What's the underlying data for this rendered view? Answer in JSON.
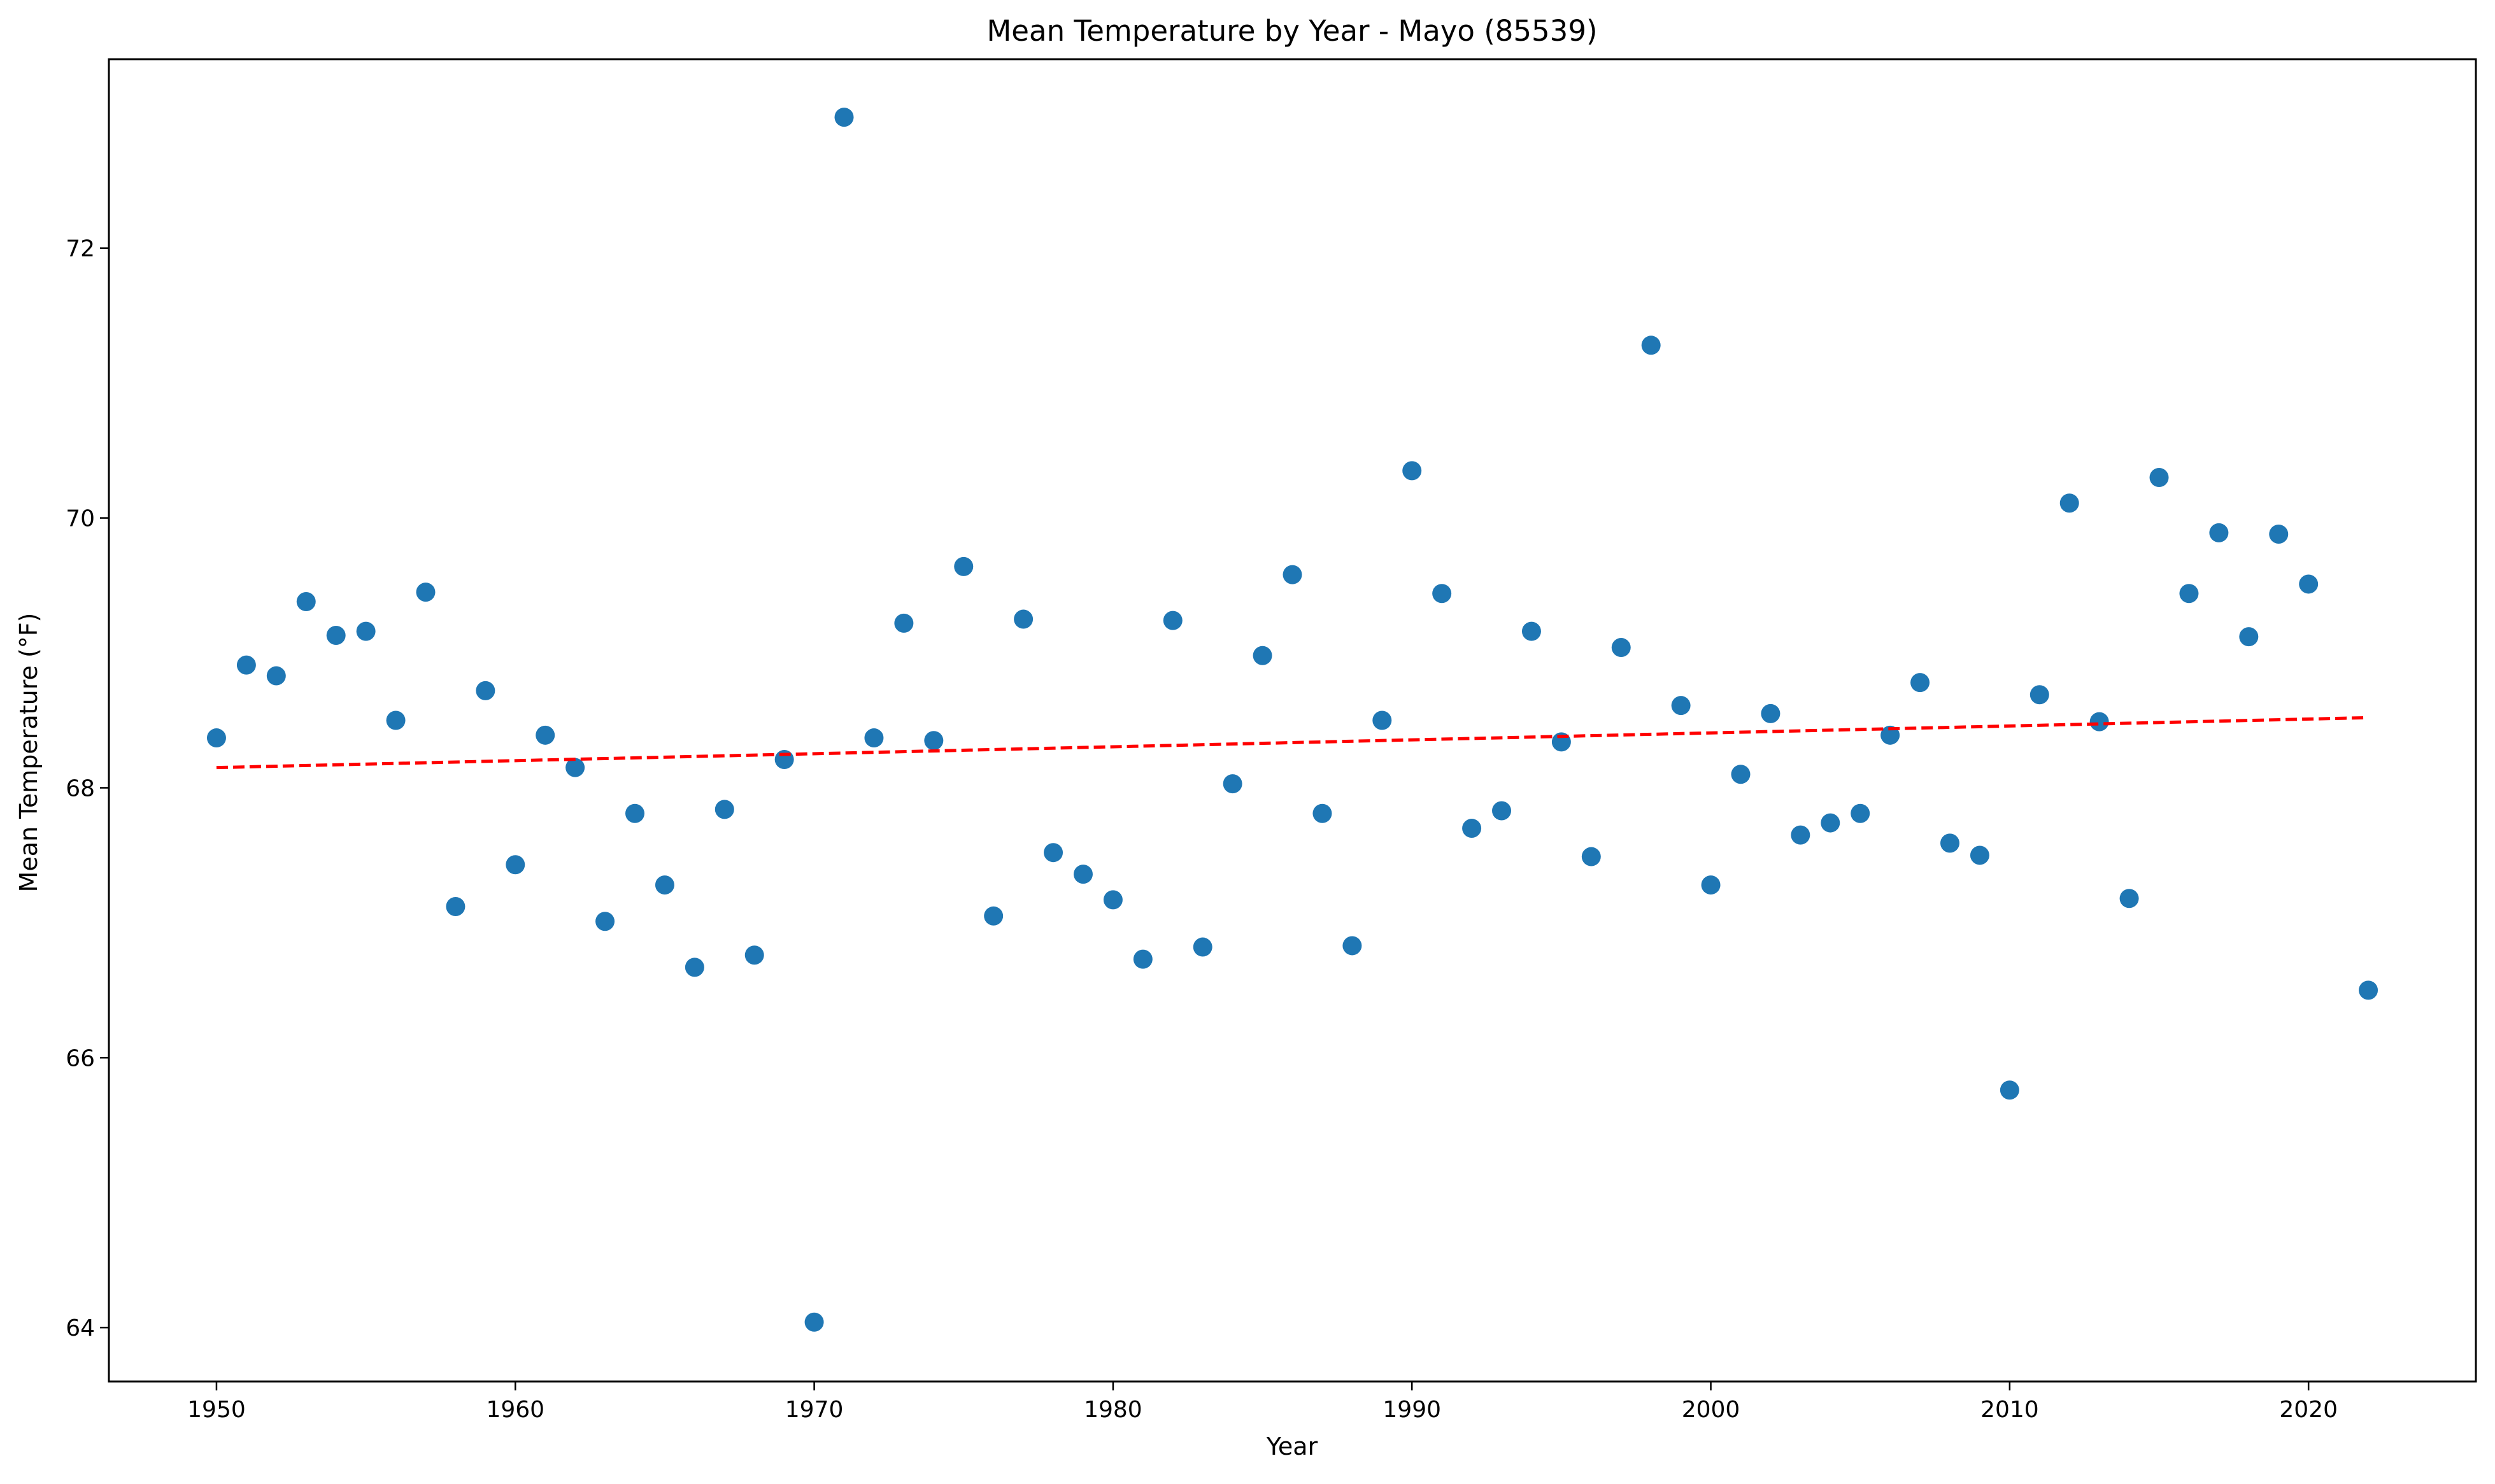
{
  "chart_data": {
    "type": "scatter",
    "title": "Mean Temperature by Year - Mayo (85539)",
    "xlabel": "Year",
    "ylabel": "Mean Temperature (°F)",
    "xlim": [
      1946.4,
      2025.6
    ],
    "ylim": [
      63.6,
      73.4
    ],
    "x_ticks": [
      1950,
      1960,
      1970,
      1980,
      1990,
      2000,
      2010,
      2020
    ],
    "y_ticks": [
      64,
      66,
      68,
      70,
      72
    ],
    "grid": false,
    "legend": "none",
    "colors": {
      "points": "#1f77b4",
      "trend": "#ff0000"
    },
    "series": [
      {
        "x": [
          1950,
          1951,
          1952,
          1953,
          1954,
          1955,
          1956,
          1957,
          1958,
          1959,
          1960,
          1961,
          1962,
          1963,
          1964,
          1965,
          1966,
          1967,
          1968,
          1969,
          1970,
          1971,
          1972,
          1973,
          1974,
          1975,
          1976,
          1977,
          1978,
          1979,
          1980,
          1981,
          1982,
          1983,
          1984,
          1985,
          1986,
          1987,
          1988,
          1989,
          1990,
          1991,
          1992,
          1993,
          1994,
          1995,
          1996,
          1997,
          1998,
          1999,
          2000,
          2001,
          2002,
          2003,
          2004,
          2005,
          2006,
          2007,
          2008,
          2009,
          2010,
          2011,
          2012,
          2013,
          2014,
          2015,
          2016,
          2017,
          2018,
          2019,
          2020,
          2022
        ],
        "y": [
          68.37,
          68.91,
          68.83,
          69.38,
          69.13,
          69.16,
          68.5,
          69.45,
          67.12,
          68.72,
          67.43,
          68.39,
          68.15,
          67.01,
          67.81,
          67.28,
          66.67,
          67.84,
          66.76,
          68.21,
          64.04,
          72.97,
          68.37,
          69.22,
          68.35,
          69.64,
          67.05,
          69.25,
          67.52,
          67.36,
          67.17,
          66.73,
          69.24,
          66.82,
          68.03,
          68.98,
          69.58,
          67.81,
          66.83,
          68.5,
          70.35,
          69.44,
          67.7,
          67.83,
          69.16,
          68.34,
          67.49,
          69.04,
          71.28,
          68.61,
          67.28,
          68.1,
          68.55,
          67.65,
          67.74,
          67.81,
          68.39,
          68.78,
          67.59,
          67.5,
          65.76,
          68.69,
          70.11,
          68.49,
          67.18,
          70.3,
          69.44,
          69.89,
          69.12,
          69.88,
          69.51,
          66.5
        ]
      }
    ],
    "trendline": {
      "style": "dashed",
      "x": [
        1950,
        2022
      ],
      "y": [
        68.15,
        68.52
      ]
    }
  }
}
